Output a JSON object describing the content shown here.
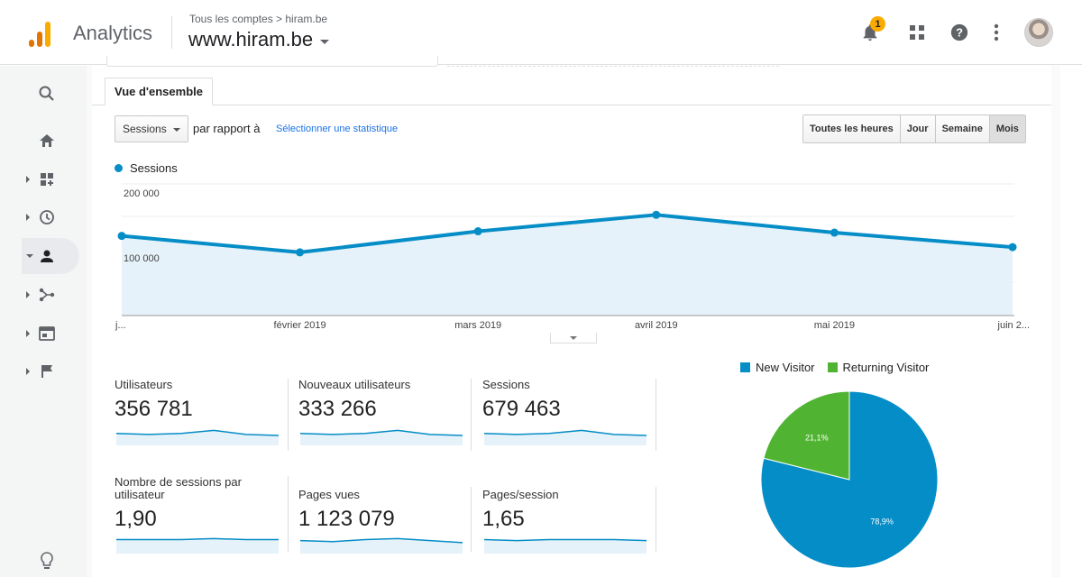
{
  "header": {
    "app_name": "Analytics",
    "breadcrumb": "Tous les comptes > hiram.be",
    "property": "www.hiram.be",
    "notification_count": "1",
    "icons": [
      "bell-icon",
      "apps-grid-icon",
      "help-icon",
      "more-vert-icon",
      "avatar"
    ],
    "logo_colors": [
      "#f9ab00",
      "#e37400",
      "#e37400"
    ]
  },
  "sidebar": {
    "items": [
      {
        "icon": "search-icon"
      },
      {
        "icon": "home-icon"
      },
      {
        "icon": "customization-icon"
      },
      {
        "icon": "clock-icon"
      },
      {
        "icon": "person-icon",
        "active": true
      },
      {
        "icon": "acquisition-icon"
      },
      {
        "icon": "behavior-icon"
      },
      {
        "icon": "flag-icon"
      },
      {
        "icon": "lightbulb-icon"
      }
    ]
  },
  "tabs": {
    "overview": "Vue d'ensemble"
  },
  "controls": {
    "metric": "Sessions",
    "compare_label": "par rapport à",
    "select_stat": "Sélectionner une statistique",
    "time_buttons": [
      "Toutes les heures",
      "Jour",
      "Semaine",
      "Mois"
    ],
    "active_time": "Mois"
  },
  "colors": {
    "sessions_line": "#058dc7",
    "new_visitor": "#058dc7",
    "returning_visitor": "#50b432",
    "link": "#1a73e8"
  },
  "chart_data": [
    {
      "type": "line",
      "series": [
        {
          "name": "Sessions",
          "values": [
            121000,
            96000,
            128000,
            153000,
            126000,
            104000
          ]
        }
      ],
      "x_labels": [
        "j...",
        "février 2019",
        "mars 2019",
        "avril 2019",
        "mai 2019",
        "juin 2..."
      ],
      "y_ticks": [
        "200 000",
        "100 000"
      ],
      "ylim": [
        0,
        200000
      ],
      "grid": true,
      "legend": "top-left"
    },
    {
      "type": "pie",
      "legend_entries": [
        "New Visitor",
        "Returning Visitor"
      ],
      "values": [
        78.9,
        21.1
      ],
      "labels": [
        "78,9%",
        "21,1%"
      ],
      "legend": "top"
    }
  ],
  "scorecards": [
    {
      "label": "Utilisateurs",
      "value": "356 781",
      "trend": [
        10,
        9,
        10,
        13,
        9,
        8
      ]
    },
    {
      "label": "Nouveaux utilisateurs",
      "value": "333 266",
      "trend": [
        10,
        9,
        10,
        13,
        9,
        8
      ]
    },
    {
      "label": "Sessions",
      "value": "679 463",
      "trend": [
        10,
        9,
        10,
        13,
        9,
        8
      ]
    },
    {
      "label": "Nombre de sessions par utilisateur",
      "value": "1,90",
      "trend": [
        12,
        12,
        12,
        13,
        12,
        12
      ]
    },
    {
      "label": "Pages vues",
      "value": "1 123 079",
      "trend": [
        11,
        10,
        12,
        13,
        11,
        9
      ]
    },
    {
      "label": "Pages/session",
      "value": "1,65",
      "trend": [
        12,
        11,
        12,
        12,
        12,
        11
      ]
    }
  ]
}
